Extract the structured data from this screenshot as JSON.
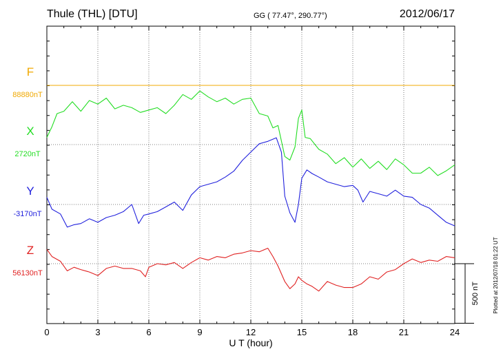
{
  "header": {
    "station": "Thule (THL)  [DTU]",
    "coords": "GG ( 77.47°, 290.77°)",
    "date": "2012/06/17"
  },
  "footer": {
    "plotted": "Plotted at 2012/07/18 01:22 UT"
  },
  "chart_data": {
    "type": "line",
    "title": "Thule (THL)  [DTU]",
    "xlabel": "U T (hour)",
    "xlim": [
      0,
      24
    ],
    "xticks": [
      "0",
      "3",
      "6",
      "9",
      "12",
      "15",
      "18",
      "21",
      "24"
    ],
    "grid": true,
    "nt_per_division": 500,
    "scale_label": "500 nT",
    "series": [
      {
        "name": "F",
        "baseline_label": "88880nT",
        "baseline": 88880,
        "color": "#f0a800",
        "x": [
          0,
          24
        ],
        "y": [
          88880,
          88880
        ]
      },
      {
        "name": "X",
        "baseline_label": "2720nT",
        "baseline": 2720,
        "color": "#22dd22",
        "x": [
          0,
          0.3,
          0.6,
          1.0,
          1.5,
          2.0,
          2.5,
          3.0,
          3.5,
          4.0,
          4.5,
          5.0,
          5.5,
          6.0,
          6.5,
          7.0,
          7.5,
          8.0,
          8.5,
          9.0,
          9.5,
          10.0,
          10.5,
          11.0,
          11.5,
          12.0,
          12.5,
          13.0,
          13.3,
          13.6,
          14.0,
          14.3,
          14.6,
          14.8,
          15.0,
          15.2,
          15.5,
          16.0,
          16.5,
          17.0,
          17.5,
          18.0,
          18.5,
          19.0,
          19.5,
          20.0,
          20.5,
          21.0,
          21.5,
          22.0,
          22.5,
          23.0,
          23.5,
          24.0
        ],
        "y": [
          2780,
          2870,
          2980,
          3000,
          3080,
          3000,
          3090,
          3060,
          3110,
          3020,
          3050,
          3030,
          2990,
          3010,
          3030,
          2980,
          3050,
          3140,
          3100,
          3170,
          3120,
          3080,
          3110,
          3060,
          3100,
          3110,
          2980,
          2960,
          2860,
          2880,
          2620,
          2590,
          2700,
          2940,
          3010,
          2780,
          2770,
          2680,
          2640,
          2560,
          2610,
          2530,
          2600,
          2520,
          2580,
          2510,
          2600,
          2550,
          2480,
          2480,
          2530,
          2460,
          2500,
          2550
        ]
      },
      {
        "name": "Y",
        "baseline_label": "-3170nT",
        "baseline": -3170,
        "color": "#2020dd",
        "x": [
          0,
          0.3,
          0.8,
          1.2,
          1.6,
          2.0,
          2.5,
          3.0,
          3.5,
          4.0,
          4.5,
          5.0,
          5.4,
          5.7,
          6.0,
          6.5,
          7.0,
          7.5,
          8.0,
          8.5,
          9.0,
          9.5,
          10.0,
          10.5,
          11.0,
          11.5,
          12.0,
          12.5,
          13.0,
          13.5,
          13.8,
          14.0,
          14.3,
          14.6,
          14.8,
          15.0,
          15.3,
          15.6,
          16.0,
          16.5,
          17.0,
          17.5,
          18.0,
          18.3,
          18.6,
          19.0,
          19.5,
          20.0,
          20.5,
          21.0,
          21.5,
          22.0,
          22.5,
          23.0,
          23.5,
          24.0
        ],
        "y": [
          -3110,
          -3210,
          -3250,
          -3360,
          -3340,
          -3330,
          -3290,
          -3320,
          -3280,
          -3260,
          -3230,
          -3170,
          -3330,
          -3260,
          -3250,
          -3230,
          -3190,
          -3150,
          -3220,
          -3090,
          -3020,
          -3000,
          -2980,
          -2940,
          -2890,
          -2800,
          -2730,
          -2660,
          -2640,
          -2610,
          -2730,
          -3100,
          -3240,
          -3320,
          -3170,
          -2950,
          -2880,
          -2910,
          -2940,
          -2980,
          -3000,
          -3020,
          -3010,
          -3050,
          -3150,
          -3060,
          -3080,
          -3100,
          -3050,
          -3100,
          -3110,
          -3170,
          -3200,
          -3260,
          -3320,
          -3350
        ]
      },
      {
        "name": "Z",
        "baseline_label": "56130nT",
        "baseline": 56130,
        "color": "#e02020",
        "x": [
          0,
          0.3,
          0.8,
          1.2,
          1.6,
          2.0,
          2.5,
          3.0,
          3.5,
          4.0,
          4.5,
          5.0,
          5.5,
          5.8,
          6.0,
          6.5,
          7.0,
          7.5,
          8.0,
          8.5,
          9.0,
          9.5,
          10.0,
          10.5,
          11.0,
          11.5,
          12.0,
          12.5,
          13.0,
          13.3,
          13.6,
          14.0,
          14.3,
          14.6,
          14.8,
          15.0,
          15.3,
          15.6,
          16.0,
          16.5,
          17.0,
          17.5,
          18.0,
          18.5,
          19.0,
          19.5,
          20.0,
          20.5,
          21.0,
          21.5,
          22.0,
          22.5,
          23.0,
          23.5,
          24.0
        ],
        "y": [
          56250,
          56190,
          56150,
          56070,
          56100,
          56080,
          56060,
          56030,
          56090,
          56110,
          56090,
          56090,
          56070,
          56020,
          56100,
          56130,
          56120,
          56140,
          56090,
          56140,
          56180,
          56160,
          56190,
          56180,
          56210,
          56220,
          56240,
          56230,
          56260,
          56190,
          56110,
          55980,
          55920,
          55960,
          56020,
          55990,
          55960,
          55940,
          55900,
          55980,
          55950,
          55930,
          55930,
          55960,
          56020,
          56000,
          56060,
          56080,
          56130,
          56170,
          56140,
          56160,
          56150,
          56190,
          56180
        ]
      }
    ]
  }
}
